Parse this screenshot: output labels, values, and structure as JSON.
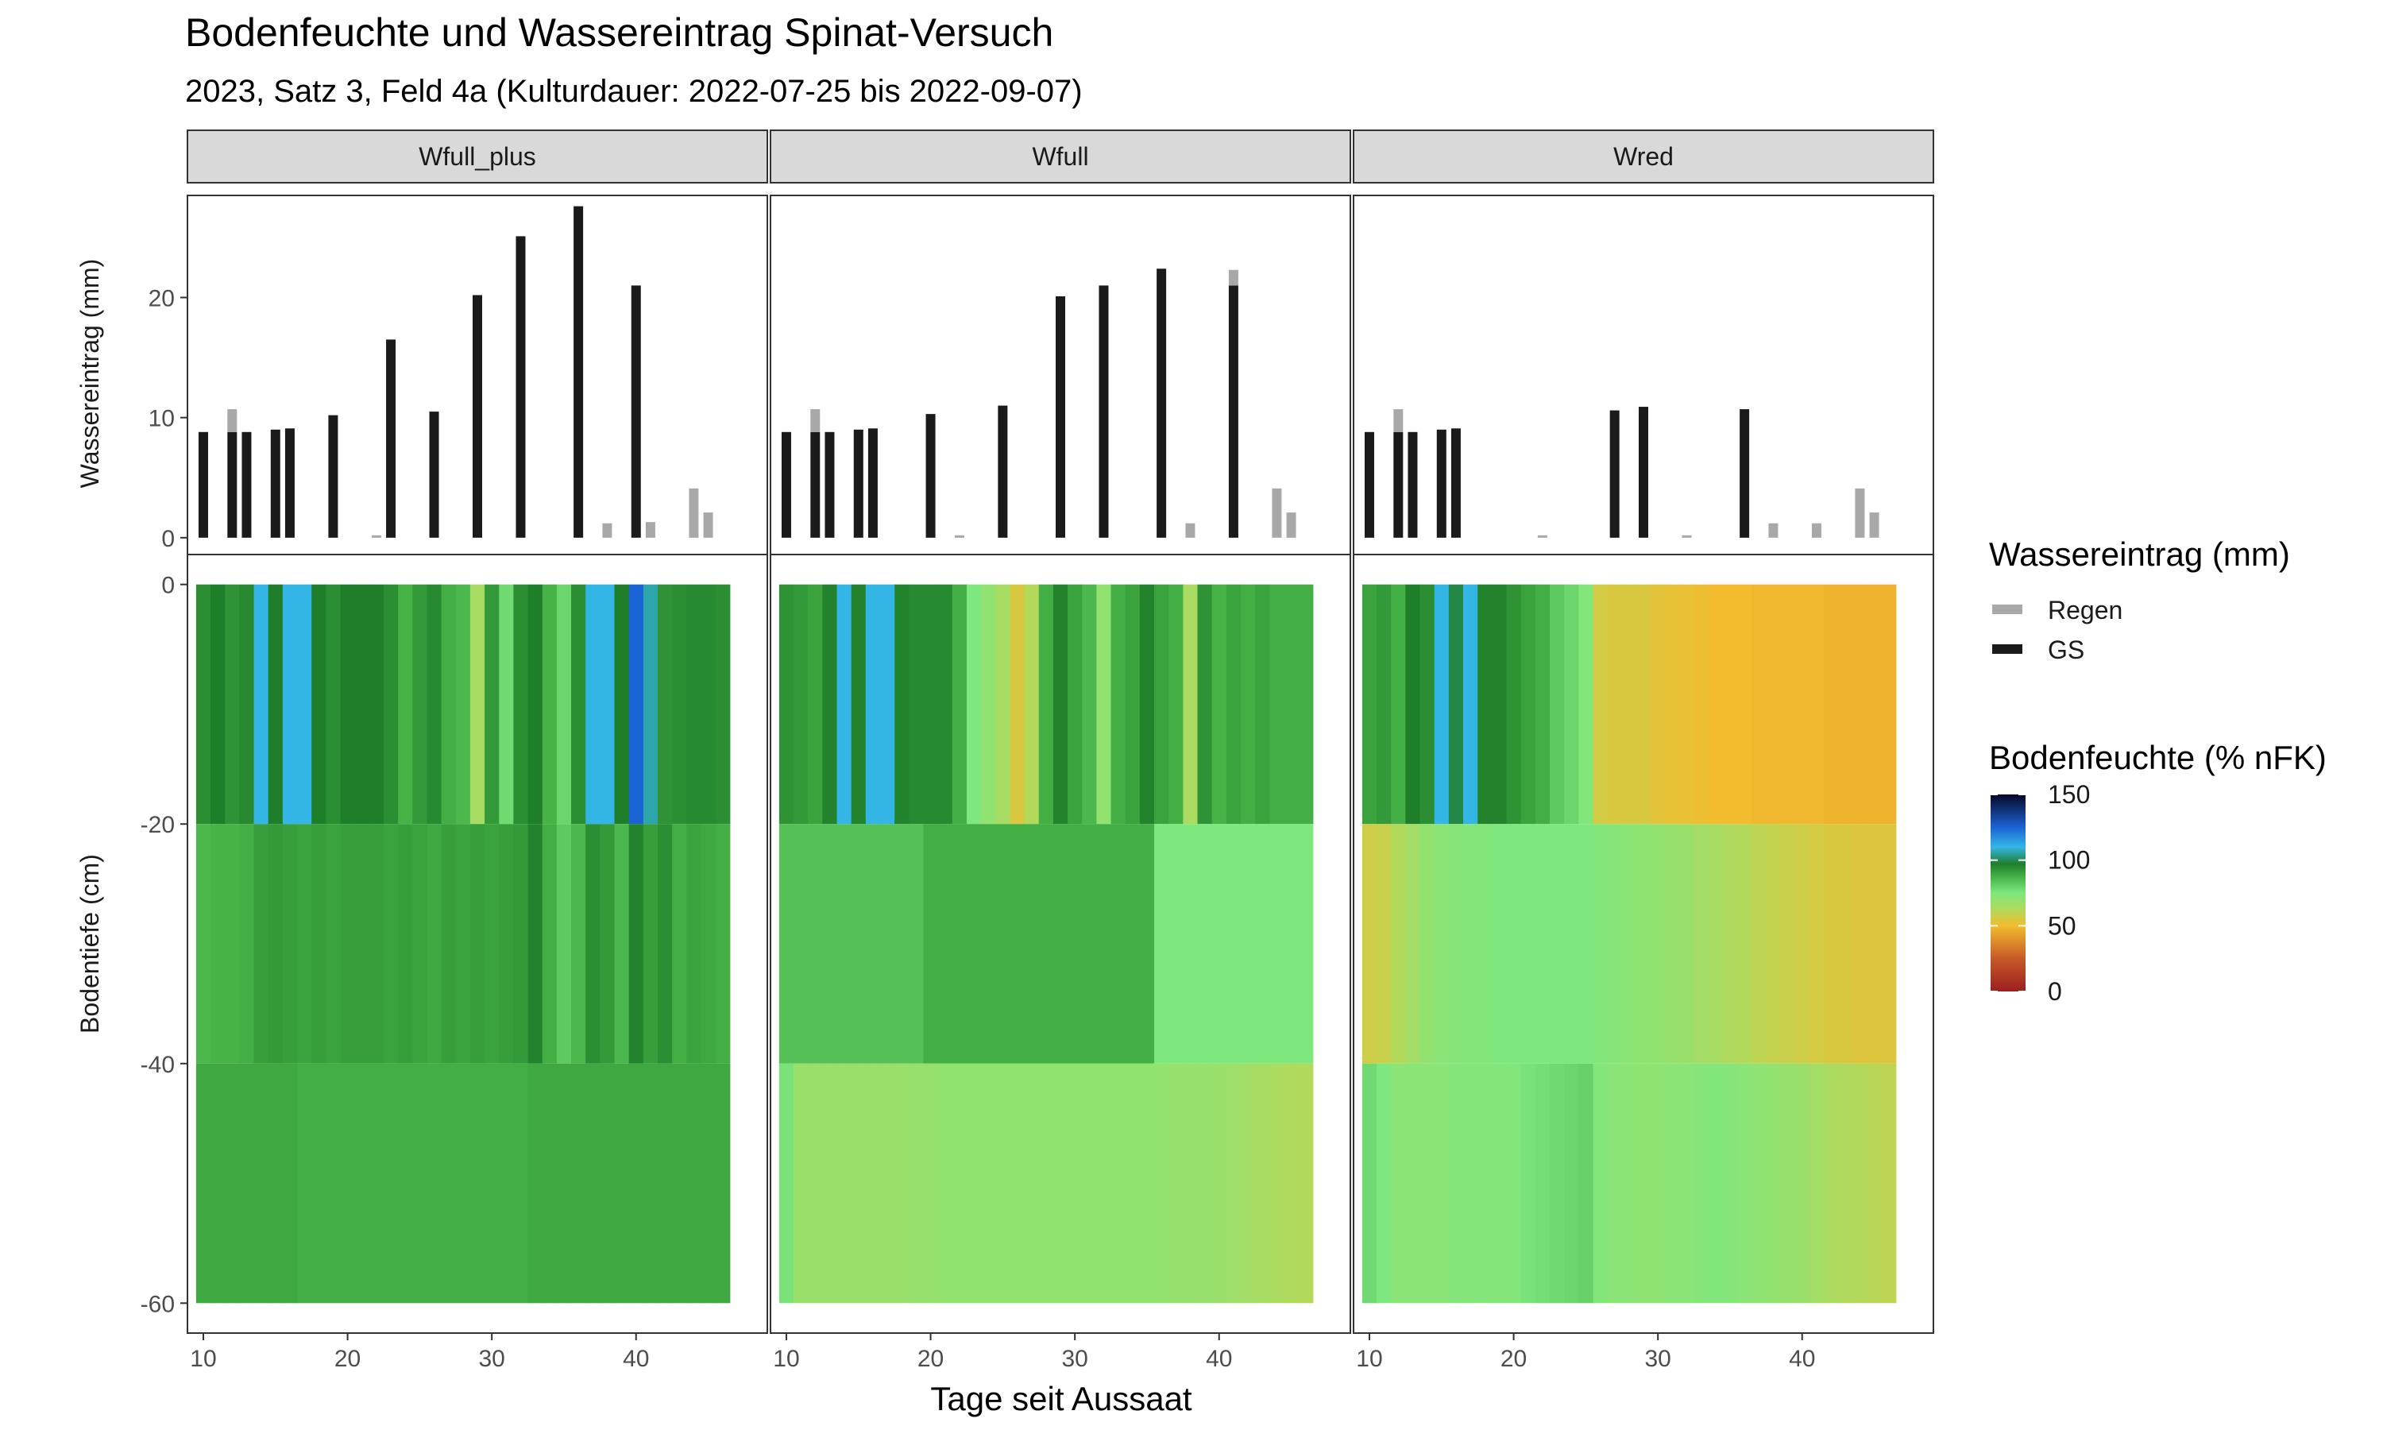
{
  "title": "Bodenfeuchte und Wassereintrag Spinat-Versuch",
  "subtitle": "2023, Satz 3, Feld 4a (Kulturdauer: 2022-07-25 bis 2022-09-07)",
  "xlabel": "Tage seit Aussaat",
  "ylabel_top": "Wassereintrag (mm)",
  "ylabel_bottom": "Bodentiefe (cm)",
  "legend_water": {
    "title": "Wassereintrag (mm)",
    "items": [
      {
        "label": "Regen",
        "color": "#a8a8a8"
      },
      {
        "label": "GS",
        "color": "#1a1a1a"
      }
    ]
  },
  "legend_moisture": {
    "title": "Bodenfeuchte (% nFK)",
    "ticks": [
      "150",
      "100",
      "50",
      "0"
    ]
  },
  "chart_data": {
    "type": "bar+heatmap",
    "x_range": [
      8.9,
      49.1
    ],
    "x_ticks": [
      10,
      20,
      30,
      40
    ],
    "top_ylim": [
      -1.4,
      28.5
    ],
    "top_yticks": [
      0,
      10,
      20
    ],
    "bottom_ylim": [
      -62.5,
      2.5
    ],
    "bottom_yticks": [
      0,
      -20,
      -40,
      -60
    ],
    "depth_layers": [
      [
        0,
        -20
      ],
      [
        -20,
        -40
      ],
      [
        -40,
        -60
      ]
    ],
    "moisture_scale": {
      "min": 0,
      "max": 150,
      "stops": [
        [
          0,
          "#9b1f1f"
        ],
        [
          25,
          "#c65a28"
        ],
        [
          50,
          "#f2bc2e"
        ],
        [
          62,
          "#b3d95a"
        ],
        [
          75,
          "#7ee77e"
        ],
        [
          87,
          "#47b347"
        ],
        [
          97,
          "#1f7e2a"
        ],
        [
          110,
          "#33b6e6"
        ],
        [
          125,
          "#1b63d4"
        ],
        [
          150,
          "#070725"
        ]
      ]
    },
    "panels": [
      {
        "name": "Wfull_plus",
        "bars": [
          {
            "day": 10,
            "gs": 8.8,
            "regen": 0
          },
          {
            "day": 12,
            "gs": 8.8,
            "regen": 1.9
          },
          {
            "day": 13,
            "gs": 8.8,
            "regen": 0
          },
          {
            "day": 15,
            "gs": 9.0,
            "regen": 0
          },
          {
            "day": 16,
            "gs": 9.1,
            "regen": 0
          },
          {
            "day": 19,
            "gs": 10.2,
            "regen": 0
          },
          {
            "day": 22,
            "gs": 0,
            "regen": 0.2
          },
          {
            "day": 23,
            "gs": 16.5,
            "regen": 0
          },
          {
            "day": 26,
            "gs": 10.5,
            "regen": 0
          },
          {
            "day": 29,
            "gs": 20.2,
            "regen": 0
          },
          {
            "day": 32,
            "gs": 25.1,
            "regen": 0
          },
          {
            "day": 36,
            "gs": 27.6,
            "regen": 0
          },
          {
            "day": 38,
            "gs": 0,
            "regen": 1.2
          },
          {
            "day": 40,
            "gs": 21.0,
            "regen": 0
          },
          {
            "day": 41,
            "gs": 0,
            "regen": 1.3
          },
          {
            "day": 44,
            "gs": 0,
            "regen": 4.1
          },
          {
            "day": 45,
            "gs": 0,
            "regen": 2.1
          }
        ],
        "moisture": [
          [
            94,
            97,
            93,
            95,
            110,
            97,
            110,
            110,
            97,
            94,
            97,
            97,
            97,
            94,
            87,
            92,
            95,
            88,
            86,
            65,
            92,
            78,
            94,
            97,
            87,
            79,
            94,
            110,
            110,
            97,
            125,
            106,
            93,
            94,
            95,
            95,
            94
          ],
          [
            86,
            87,
            87,
            88,
            91,
            92,
            91,
            90,
            91,
            90,
            91,
            91,
            91,
            90,
            91,
            90,
            89,
            91,
            90,
            91,
            90,
            91,
            92,
            96,
            88,
            82,
            86,
            94,
            92,
            86,
            96,
            91,
            94,
            88,
            90,
            89,
            88
          ],
          [
            89,
            89,
            89,
            89,
            89,
            89,
            89,
            88,
            88,
            88,
            88,
            88,
            88,
            88,
            88,
            88,
            88,
            88,
            88,
            88,
            88,
            88,
            88,
            89,
            89,
            89,
            89,
            89,
            89,
            89,
            89,
            89,
            89,
            89,
            89,
            89,
            89
          ]
        ]
      },
      {
        "name": "Wfull",
        "bars": [
          {
            "day": 10,
            "gs": 8.8,
            "regen": 0
          },
          {
            "day": 12,
            "gs": 8.8,
            "regen": 1.9
          },
          {
            "day": 13,
            "gs": 8.8,
            "regen": 0
          },
          {
            "day": 15,
            "gs": 9.0,
            "regen": 0
          },
          {
            "day": 16,
            "gs": 9.1,
            "regen": 0
          },
          {
            "day": 20,
            "gs": 10.3,
            "regen": 0
          },
          {
            "day": 22,
            "gs": 0,
            "regen": 0.2
          },
          {
            "day": 25,
            "gs": 11.0,
            "regen": 0
          },
          {
            "day": 29,
            "gs": 20.1,
            "regen": 0
          },
          {
            "day": 32,
            "gs": 21.0,
            "regen": 0
          },
          {
            "day": 36,
            "gs": 22.4,
            "regen": 0
          },
          {
            "day": 38,
            "gs": 0,
            "regen": 1.2
          },
          {
            "day": 41,
            "gs": 21.0,
            "regen": 1.3
          },
          {
            "day": 44,
            "gs": 0,
            "regen": 4.1
          },
          {
            "day": 45,
            "gs": 0,
            "regen": 2.1
          }
        ],
        "moisture": [
          [
            93,
            92,
            90,
            96,
            110,
            96,
            110,
            110,
            96,
            95,
            95,
            95,
            88,
            75,
            70,
            65,
            55,
            62,
            88,
            96,
            90,
            86,
            70,
            88,
            90,
            96,
            90,
            88,
            64,
            93,
            87,
            90,
            88,
            90,
            88,
            88,
            88
          ],
          [
            84,
            84,
            84,
            84,
            84,
            84,
            84,
            84,
            84,
            84,
            88,
            88,
            88,
            88,
            88,
            88,
            88,
            88,
            88,
            88,
            88,
            88,
            88,
            88,
            88,
            88,
            75,
            75,
            75,
            75,
            75,
            75,
            75,
            75,
            75,
            75,
            75
          ],
          [
            76,
            68,
            68,
            68,
            68,
            68,
            68,
            68,
            68,
            69,
            69,
            70,
            70,
            70,
            70,
            70,
            70,
            70,
            70,
            70,
            70,
            70,
            70,
            70,
            70,
            70,
            70,
            69,
            69,
            69,
            68,
            67,
            66,
            65,
            64,
            63,
            62
          ]
        ]
      },
      {
        "name": "Wred",
        "bars": [
          {
            "day": 10,
            "gs": 8.8,
            "regen": 0
          },
          {
            "day": 12,
            "gs": 8.8,
            "regen": 1.9
          },
          {
            "day": 13,
            "gs": 8.8,
            "regen": 0
          },
          {
            "day": 15,
            "gs": 9.0,
            "regen": 0
          },
          {
            "day": 16,
            "gs": 9.1,
            "regen": 0
          },
          {
            "day": 22,
            "gs": 0,
            "regen": 0.2
          },
          {
            "day": 27,
            "gs": 10.6,
            "regen": 0
          },
          {
            "day": 29,
            "gs": 10.9,
            "regen": 0
          },
          {
            "day": 32,
            "gs": 0,
            "regen": 0.2
          },
          {
            "day": 36,
            "gs": 10.7,
            "regen": 0
          },
          {
            "day": 38,
            "gs": 0,
            "regen": 1.2
          },
          {
            "day": 41,
            "gs": 0,
            "regen": 1.2
          },
          {
            "day": 44,
            "gs": 0,
            "regen": 4.1
          },
          {
            "day": 45,
            "gs": 0,
            "regen": 2.1
          }
        ],
        "moisture": [
          [
            90,
            92,
            88,
            97,
            94,
            110,
            99,
            110,
            96,
            96,
            93,
            90,
            88,
            82,
            79,
            74,
            56,
            55,
            55,
            55,
            53,
            52,
            52,
            51,
            50,
            50,
            50,
            49,
            49,
            49,
            49,
            49,
            48,
            48,
            48,
            48,
            48
          ],
          [
            57,
            58,
            62,
            66,
            70,
            72,
            73,
            74,
            74,
            75,
            75,
            75,
            75,
            75,
            75,
            75,
            74,
            73,
            72,
            71,
            70,
            69,
            68,
            66,
            65,
            63,
            62,
            60,
            59,
            58,
            57,
            56,
            55,
            55,
            54,
            54,
            54
          ],
          [
            78,
            75,
            72,
            72,
            72,
            72,
            74,
            74,
            74,
            74,
            74,
            76,
            77,
            78,
            79,
            80,
            74,
            72,
            72,
            71,
            71,
            72,
            72,
            73,
            74,
            73,
            72,
            71,
            70,
            69,
            68,
            66,
            64,
            63,
            62,
            61,
            60
          ]
        ]
      }
    ]
  }
}
